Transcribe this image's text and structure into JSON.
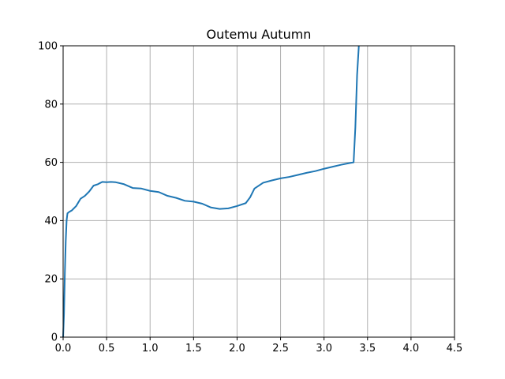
{
  "chart_data": {
    "type": "line",
    "title": "Outemu Autumn",
    "xlabel": "",
    "ylabel": "",
    "xlim": [
      0,
      4.5
    ],
    "ylim": [
      0,
      100
    ],
    "grid": true,
    "xticks": [
      0.0,
      0.5,
      1.0,
      1.5,
      2.0,
      2.5,
      3.0,
      3.5,
      4.0,
      4.5
    ],
    "xtick_labels": [
      "0.0",
      "0.5",
      "1.0",
      "1.5",
      "2.0",
      "2.5",
      "3.0",
      "3.5",
      "4.0",
      "4.5"
    ],
    "yticks": [
      0,
      20,
      40,
      60,
      80,
      100
    ],
    "ytick_labels": [
      "0",
      "20",
      "40",
      "60",
      "80",
      "100"
    ],
    "line_color": "#1f77b4",
    "series": [
      {
        "x": [
          0.0,
          0.01,
          0.02,
          0.03,
          0.04,
          0.05,
          0.07,
          0.1,
          0.15,
          0.2,
          0.25,
          0.3,
          0.35,
          0.4,
          0.45,
          0.5,
          0.55,
          0.6,
          0.7,
          0.8,
          0.9,
          1.0,
          1.1,
          1.2,
          1.3,
          1.4,
          1.5,
          1.6,
          1.7,
          1.8,
          1.9,
          2.0,
          2.1,
          2.15,
          2.2,
          2.3,
          2.4,
          2.5,
          2.6,
          2.7,
          2.8,
          2.9,
          3.0,
          3.1,
          3.2,
          3.3,
          3.34,
          3.36,
          3.38,
          3.4
        ],
        "y": [
          0,
          8,
          22,
          33,
          40,
          42.5,
          43,
          43.5,
          45,
          47.5,
          48.5,
          50,
          52,
          52.5,
          53.3,
          53.2,
          53.3,
          53.2,
          52.5,
          51.2,
          51,
          50.2,
          49.8,
          48.5,
          47.8,
          46.8,
          46.5,
          45.8,
          44.5,
          44,
          44.2,
          45,
          46,
          48,
          51,
          53,
          53.8,
          54.5,
          55,
          55.7,
          56.4,
          57,
          57.8,
          58.5,
          59.2,
          59.8,
          60,
          72,
          90,
          100
        ]
      }
    ]
  }
}
